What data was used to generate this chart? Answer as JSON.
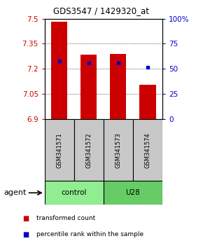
{
  "title": "GDS3547 / 1429320_at",
  "samples": [
    "GSM341571",
    "GSM341572",
    "GSM341573",
    "GSM341574"
  ],
  "group_labels": [
    "control",
    "U28"
  ],
  "group_colors": [
    "#90EE90",
    "#66CC66"
  ],
  "bar_bottom": 6.9,
  "red_bar_tops": [
    7.48,
    7.285,
    7.29,
    7.105
  ],
  "blue_marker_values": [
    7.245,
    7.235,
    7.235,
    7.21
  ],
  "ylim": [
    6.9,
    7.5
  ],
  "y_ticks": [
    6.9,
    7.05,
    7.2,
    7.35,
    7.5
  ],
  "right_yticks": [
    0,
    25,
    50,
    75,
    100
  ],
  "right_ytick_labels": [
    "0",
    "25",
    "50",
    "75",
    "100%"
  ],
  "bar_color": "#CC0000",
  "marker_color": "#0000CC",
  "legend_items": [
    "transformed count",
    "percentile rank within the sample"
  ]
}
